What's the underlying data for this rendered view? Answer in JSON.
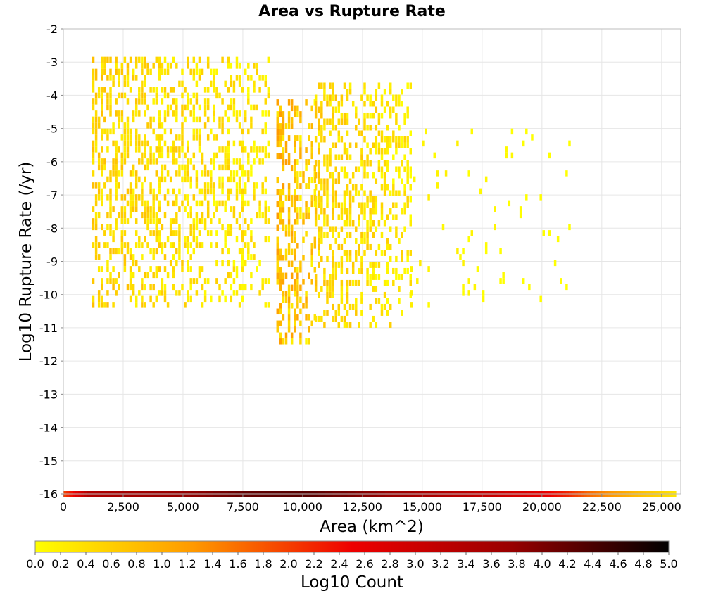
{
  "chart_data": {
    "type": "heatmap",
    "title": "Area vs Rupture Rate",
    "xlabel": "Area (km^2)",
    "ylabel": "Log10 Rupture Rate (/yr)",
    "xlim": [
      0,
      25800
    ],
    "ylim": [
      -16,
      -2
    ],
    "x_ticks": [
      "0",
      "2,500",
      "5,000",
      "7,500",
      "10,000",
      "12,500",
      "15,000",
      "17,500",
      "20,000",
      "22,500",
      "25,000"
    ],
    "x_tick_values": [
      0,
      2500,
      5000,
      7500,
      10000,
      12500,
      15000,
      17500,
      20000,
      22500,
      25000
    ],
    "y_ticks": [
      "-2",
      "-3",
      "-4",
      "-5",
      "-6",
      "-7",
      "-8",
      "-9",
      "-10",
      "-11",
      "-12",
      "-13",
      "-14",
      "-15",
      "-16"
    ],
    "y_tick_values": [
      -2,
      -3,
      -4,
      -5,
      -6,
      -7,
      -8,
      -9,
      -10,
      -11,
      -12,
      -13,
      -14,
      -15,
      -16
    ],
    "grid": true,
    "colorbar": {
      "label": "Log10 Count",
      "min": 0.0,
      "max": 5.0,
      "ticks": [
        "0.0",
        "0.2",
        "0.4",
        "0.6",
        "0.8",
        "1.0",
        "1.2",
        "1.4",
        "1.6",
        "1.8",
        "2.0",
        "2.2",
        "2.4",
        "2.6",
        "2.8",
        "3.0",
        "3.2",
        "3.4",
        "3.6",
        "3.8",
        "4.0",
        "4.2",
        "4.4",
        "4.6",
        "4.8",
        "5.0"
      ],
      "colors": [
        "#ffff00",
        "#ff9900",
        "#ee0000",
        "#990000",
        "#000000"
      ]
    },
    "clusters": [
      {
        "x_range": [
          1200,
          8600
        ],
        "y_range": [
          -10.4,
          -3.0
        ],
        "log10_count": 0.6
      },
      {
        "x_range": [
          8900,
          10500
        ],
        "y_range": [
          -11.5,
          -4.2
        ],
        "log10_count": 0.9
      },
      {
        "x_range": [
          10500,
          14500
        ],
        "y_range": [
          -11.0,
          -3.8
        ],
        "log10_count": 0.6
      },
      {
        "x_range": [
          14500,
          21200
        ],
        "y_range": [
          -10.4,
          -5.1
        ],
        "log10_count": 0.2
      }
    ],
    "bottom_band": {
      "y": -16,
      "x": [
        0,
        1000,
        2500,
        5000,
        7500,
        10000,
        12500,
        15000,
        17500,
        20000,
        21000,
        22000,
        23000,
        24000,
        25000,
        25600
      ],
      "log10_count": [
        2.0,
        3.4,
        3.6,
        3.8,
        4.2,
        4.3,
        3.9,
        3.5,
        3.1,
        2.6,
        2.2,
        1.6,
        1.2,
        0.8,
        0.5,
        0.3
      ]
    }
  }
}
